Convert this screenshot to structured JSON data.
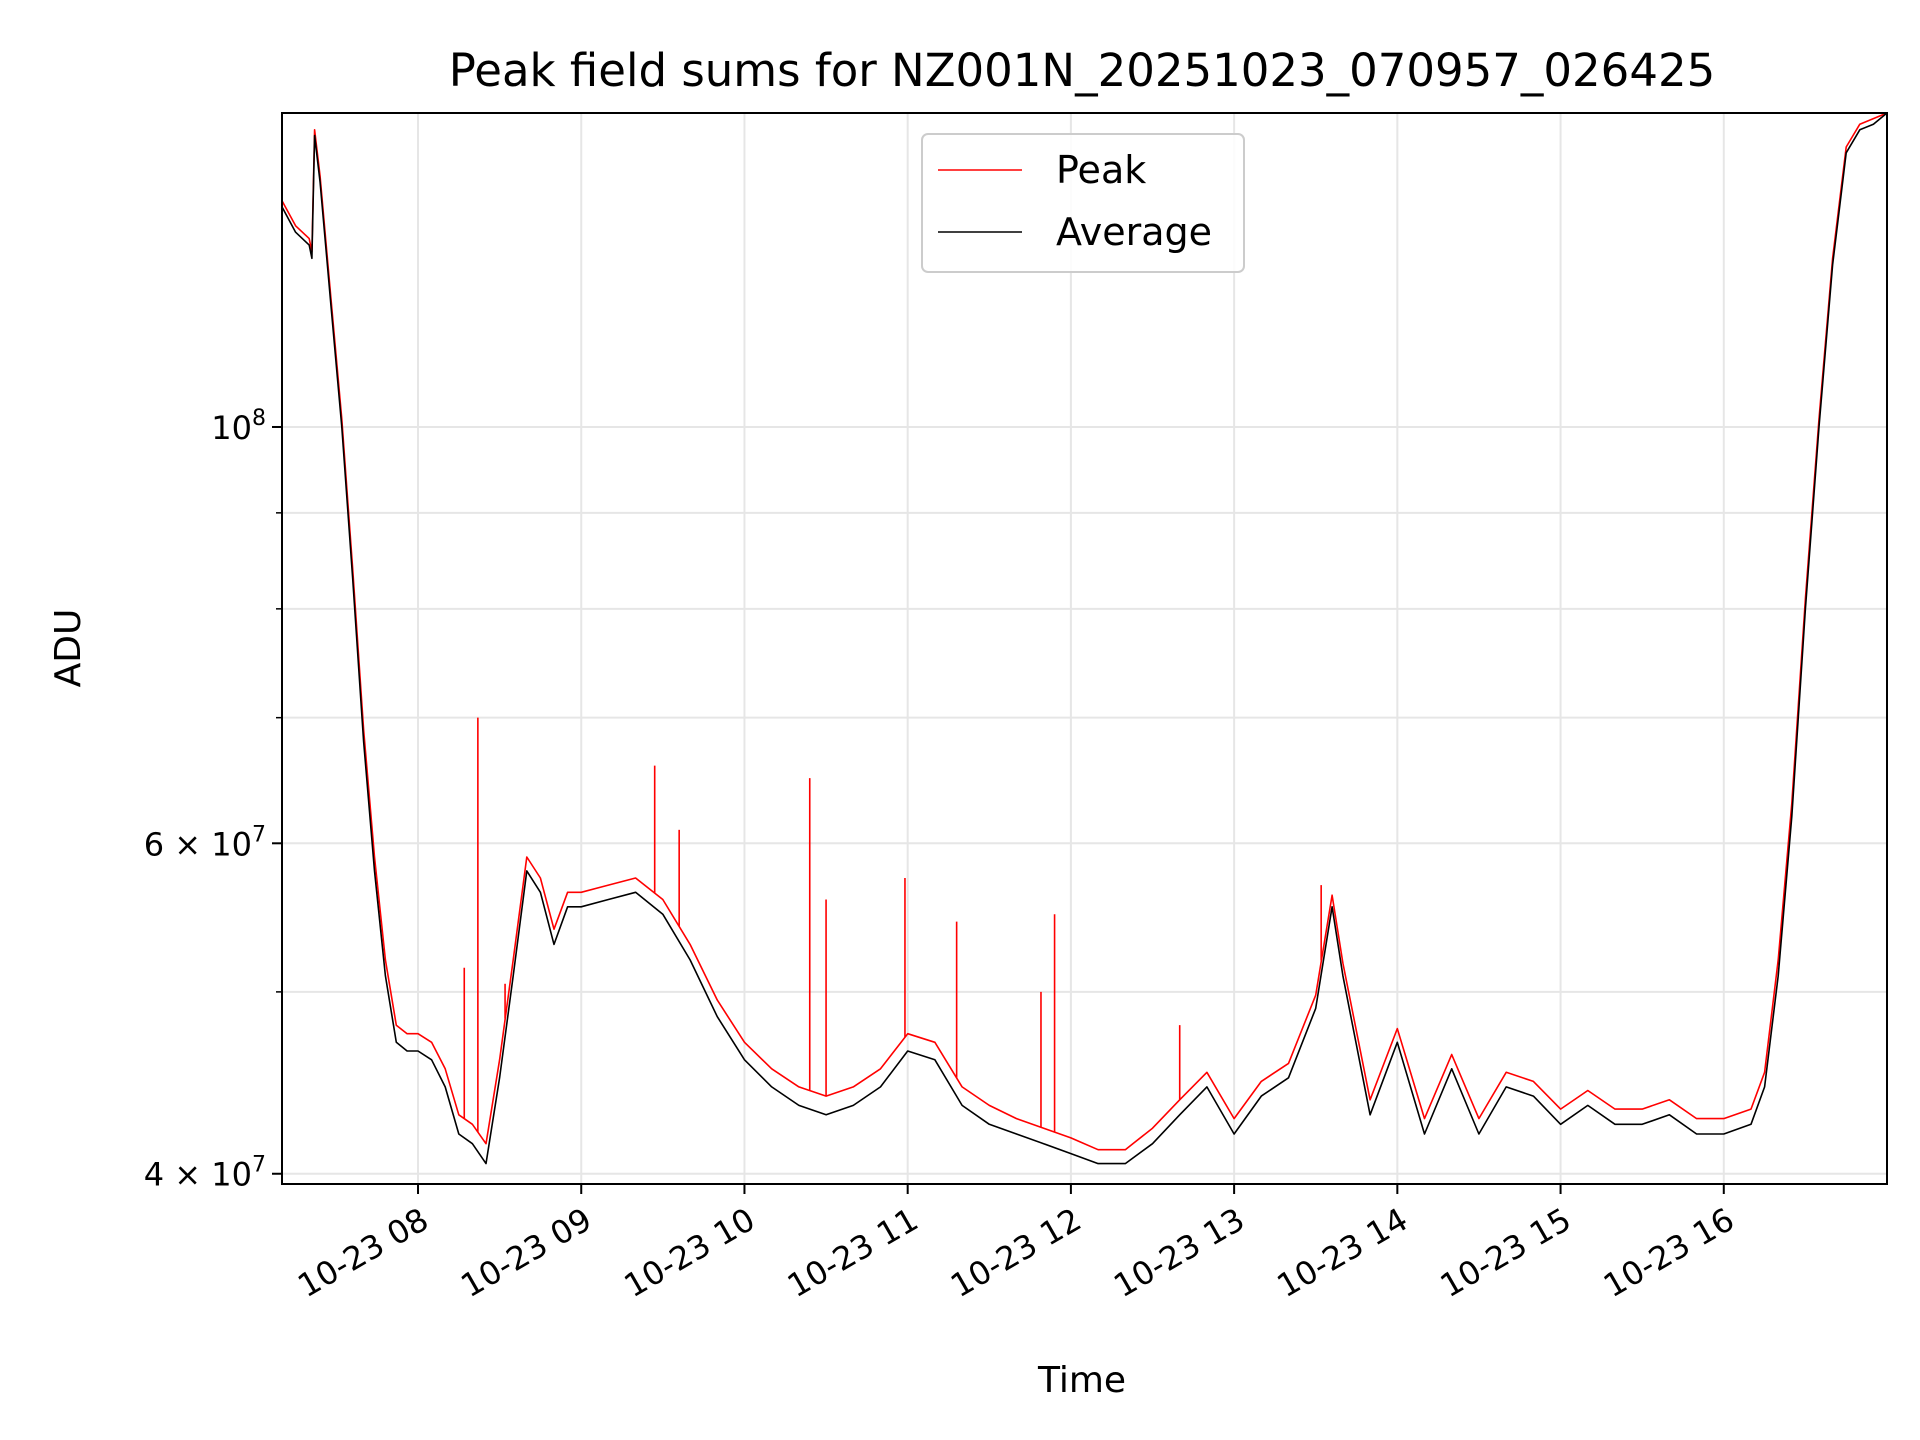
{
  "chart_data": {
    "type": "line",
    "title": "Peak field sums for NZ001N_20251023_070957_026425",
    "xlabel": "Time",
    "ylabel": "ADU",
    "x_range": [
      "2025-10-23 07:10",
      "2025-10-23 17:00"
    ],
    "y_range": [
      39500000,
      147000000
    ],
    "y_scale": "log",
    "grid": true,
    "legend_position": "upper center",
    "x_ticks": [
      "10-23 08",
      "10-23 09",
      "10-23 10",
      "10-23 11",
      "10-23 12",
      "10-23 13",
      "10-23 14",
      "10-23 15",
      "10-23 16"
    ],
    "y_ticks": [
      {
        "value": 40000000,
        "base": "4 × 10",
        "exp": "7"
      },
      {
        "value": 60000000,
        "base": "6 × 10",
        "exp": "7"
      },
      {
        "value": 100000000,
        "base": "10",
        "exp": "8"
      }
    ],
    "series": [
      {
        "name": "Average",
        "color": "#000000",
        "x": [
          "07:10",
          "07:15",
          "07:20",
          "07:21",
          "07:22",
          "07:24",
          "07:28",
          "07:32",
          "07:36",
          "07:40",
          "07:44",
          "07:48",
          "07:52",
          "07:56",
          "08:00",
          "08:05",
          "08:10",
          "08:15",
          "08:20",
          "08:25",
          "08:30",
          "08:35",
          "08:40",
          "08:45",
          "08:50",
          "08:55",
          "09:00",
          "09:10",
          "09:20",
          "09:30",
          "09:40",
          "09:50",
          "10:00",
          "10:10",
          "10:20",
          "10:30",
          "10:40",
          "10:50",
          "11:00",
          "11:10",
          "11:20",
          "11:30",
          "11:40",
          "11:50",
          "12:00",
          "12:10",
          "12:20",
          "12:30",
          "12:40",
          "12:50",
          "13:00",
          "13:10",
          "13:20",
          "13:30",
          "13:36",
          "13:40",
          "13:50",
          "14:00",
          "14:10",
          "14:20",
          "14:30",
          "14:40",
          "14:50",
          "15:00",
          "15:10",
          "15:20",
          "15:30",
          "15:40",
          "15:50",
          "16:00",
          "16:10",
          "16:15",
          "16:20",
          "16:25",
          "16:30",
          "16:35",
          "16:40",
          "16:45",
          "16:50",
          "16:55",
          "17:00"
        ],
        "y": [
          131000000,
          127000000,
          125000000,
          123000000,
          143000000,
          135000000,
          116000000,
          100000000,
          83000000,
          68000000,
          58000000,
          51000000,
          47000000,
          46500000,
          46500000,
          46000000,
          44500000,
          42000000,
          41500000,
          40500000,
          45000000,
          51000000,
          58000000,
          56500000,
          53000000,
          55500000,
          55500000,
          56000000,
          56500000,
          55000000,
          52000000,
          48500000,
          46000000,
          44500000,
          43500000,
          43000000,
          43500000,
          44500000,
          46500000,
          46000000,
          43500000,
          42500000,
          42000000,
          41500000,
          41000000,
          40500000,
          40500000,
          41500000,
          43000000,
          44500000,
          42000000,
          44000000,
          45000000,
          49000000,
          55500000,
          51000000,
          43000000,
          47000000,
          42000000,
          45500000,
          42000000,
          44500000,
          44000000,
          42500000,
          43500000,
          42500000,
          42500000,
          43000000,
          42000000,
          42000000,
          42500000,
          44500000,
          51000000,
          62000000,
          80000000,
          100000000,
          122000000,
          140000000,
          144000000,
          145000000,
          147000000
        ]
      },
      {
        "name": "Peak",
        "color": "#ff0000",
        "x": [
          "07:10",
          "07:15",
          "07:20",
          "07:21",
          "07:22",
          "07:24",
          "07:28",
          "07:32",
          "07:36",
          "07:40",
          "07:44",
          "07:48",
          "07:52",
          "07:56",
          "08:00",
          "08:05",
          "08:10",
          "08:15",
          "08:20",
          "08:25",
          "08:30",
          "08:35",
          "08:40",
          "08:45",
          "08:50",
          "08:55",
          "09:00",
          "09:10",
          "09:20",
          "09:30",
          "09:40",
          "09:50",
          "10:00",
          "10:10",
          "10:20",
          "10:30",
          "10:40",
          "10:50",
          "11:00",
          "11:10",
          "11:20",
          "11:30",
          "11:40",
          "11:50",
          "12:00",
          "12:10",
          "12:20",
          "12:30",
          "12:40",
          "12:50",
          "13:00",
          "13:10",
          "13:20",
          "13:30",
          "13:36",
          "13:40",
          "13:50",
          "14:00",
          "14:10",
          "14:20",
          "14:30",
          "14:40",
          "14:50",
          "15:00",
          "15:10",
          "15:20",
          "15:30",
          "15:40",
          "15:50",
          "16:00",
          "16:10",
          "16:15",
          "16:20",
          "16:25",
          "16:30",
          "16:35",
          "16:40",
          "16:45",
          "16:50",
          "16:55",
          "17:00"
        ],
        "y": [
          132000000,
          128000000,
          126000000,
          124000000,
          144000000,
          136000000,
          117000000,
          101000000,
          84000000,
          69000000,
          59000000,
          52000000,
          48000000,
          47500000,
          47500000,
          47000000,
          45500000,
          43000000,
          42500000,
          41500000,
          46000000,
          52000000,
          59000000,
          57500000,
          54000000,
          56500000,
          56500000,
          57000000,
          57500000,
          56000000,
          53000000,
          49500000,
          47000000,
          45500000,
          44500000,
          44000000,
          44500000,
          45500000,
          47500000,
          47000000,
          44500000,
          43500000,
          42800000,
          42300000,
          41800000,
          41200000,
          41200000,
          42300000,
          43800000,
          45300000,
          42800000,
          44800000,
          45800000,
          49800000,
          56300000,
          51800000,
          43800000,
          47800000,
          42800000,
          46300000,
          42800000,
          45300000,
          44800000,
          43300000,
          44300000,
          43300000,
          43300000,
          43800000,
          42800000,
          42800000,
          43300000,
          45300000,
          52000000,
          63000000,
          81000000,
          101000000,
          123000000,
          141000000,
          145000000,
          146000000,
          147000000
        ],
        "spikes": [
          {
            "x": "08:22",
            "y": 70000000
          },
          {
            "x": "08:17",
            "y": 51500000
          },
          {
            "x": "08:32",
            "y": 50500000
          },
          {
            "x": "09:27",
            "y": 66000000
          },
          {
            "x": "09:36",
            "y": 61000000
          },
          {
            "x": "10:24",
            "y": 65000000
          },
          {
            "x": "10:30",
            "y": 56000000
          },
          {
            "x": "10:59",
            "y": 57500000
          },
          {
            "x": "11:18",
            "y": 54500000
          },
          {
            "x": "11:54",
            "y": 55000000
          },
          {
            "x": "11:49",
            "y": 50000000
          },
          {
            "x": "12:40",
            "y": 48000000
          },
          {
            "x": "13:32",
            "y": 57000000
          }
        ]
      }
    ]
  }
}
